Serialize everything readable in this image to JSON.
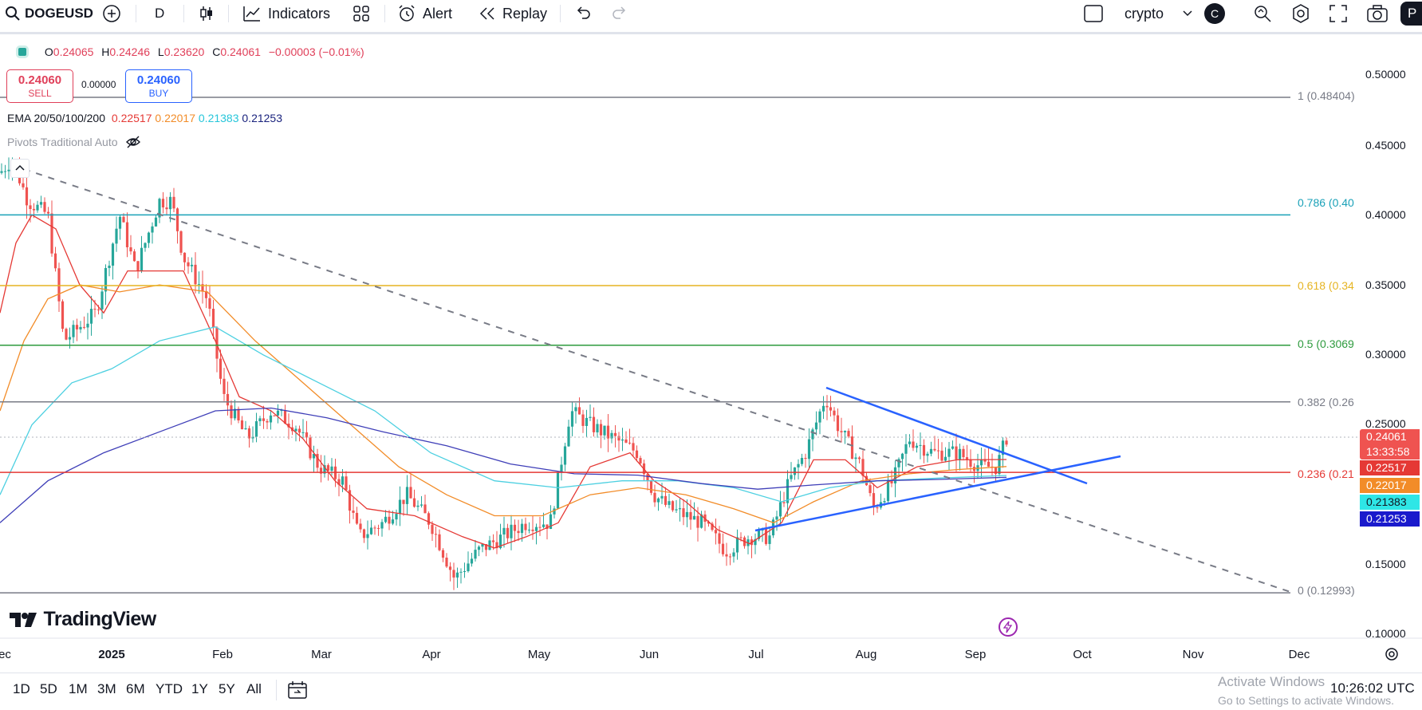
{
  "toolbar": {
    "symbol": "DOGEUSD",
    "interval": "D",
    "indicators_label": "Indicators",
    "alert_label": "Alert",
    "replay_label": "Replay",
    "layout_name": "crypto",
    "avatar_letter": "C",
    "publish_label": "P"
  },
  "legend": {
    "o_label": "O",
    "o_val": "0.24065",
    "h_label": "H",
    "h_val": "0.24246",
    "l_label": "L",
    "l_val": "0.23620",
    "c_label": "C",
    "c_val": "0.24061",
    "change": "−0.00003 (−0.01%)",
    "sell_price": "0.24060",
    "sell_label": "SELL",
    "spread": "0.00000",
    "buy_price": "0.24060",
    "buy_label": "BUY",
    "ema_label": "EMA 20/50/100/200",
    "ema20": "0.22517",
    "ema50": "0.22017",
    "ema100": "0.21383",
    "ema200": "0.21253",
    "pivots_label": "Pivots Traditional Auto"
  },
  "price_axis": [
    "0.50000",
    "0.45000",
    "0.40000",
    "0.35000",
    "0.30000",
    "0.25000",
    "0.15000",
    "0.10000"
  ],
  "price_tags": {
    "last": "0.24061",
    "countdown": "13:33:58",
    "ema20": "0.22517",
    "ema50": "0.22017",
    "ema100": "0.21383",
    "ema200": "0.21253"
  },
  "fib_levels": {
    "f1": "1 (0.48404)",
    "f786": "0.786 (0.40",
    "f618": "0.618 (0.34",
    "f5": "0.5 (0.3069",
    "f382": "0.382 (0.26",
    "f236": "0.236 (0.21",
    "f0": "0 (0.12993)"
  },
  "time_axis": [
    "ec",
    "2025",
    "Feb",
    "Mar",
    "Apr",
    "May",
    "Jun",
    "Jul",
    "Aug",
    "Sep",
    "Oct",
    "Nov",
    "Dec"
  ],
  "brand": "TradingView",
  "ranges": [
    "1D",
    "5D",
    "1M",
    "3M",
    "6M",
    "YTD",
    "1Y",
    "5Y",
    "All"
  ],
  "clock": "10:26:02 UTC",
  "activate": {
    "title": "Activate Windows",
    "subtitle": "Go to Settings to activate Windows."
  },
  "colors": {
    "up": "#26a69a",
    "down": "#ef5350",
    "ema20": "#e53935",
    "ema50": "#f28c28",
    "ema100": "#4dd0e1",
    "ema200": "#3f3fb8",
    "fib786": "#1aa1b8",
    "fib618": "#e6b422",
    "fib5": "#2e9b3e",
    "fib236": "#e53935",
    "triangle": "#2962ff"
  }
}
